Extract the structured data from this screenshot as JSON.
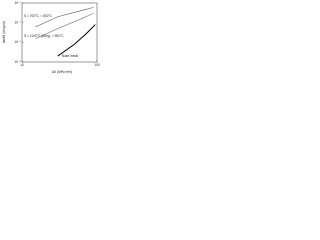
{
  "chart_data": {
    "type": "line",
    "y_label": "da/dN (m/cycle)",
    "x_label": "ΔK (MPa·m½)",
    "xlim": [
      10,
      100
    ],
    "ylim": [
      1e-09,
      1e-06
    ],
    "log_x": true,
    "log_y": true,
    "xticks": [
      10,
      100
    ],
    "yticks": [
      {
        "value": 1e-09,
        "label": "10⁻⁹"
      },
      {
        "value": 1e-08,
        "label": "10⁻⁸"
      },
      {
        "value": 1e-07,
        "label": "10⁻⁷"
      },
      {
        "value": 1e-06,
        "label": "10⁻⁶"
      }
    ],
    "series": [
      {
        "name": "S = 700°C, = 800°C",
        "color": "#555555",
        "x": [
          15,
          30,
          60,
          90
        ],
        "values": [
          6e-08,
          2e-07,
          4e-07,
          6e-07
        ]
      },
      {
        "name": "S = 1100°C (Alloy), = 900°C",
        "color": "#777777",
        "x": [
          15,
          30,
          60,
          90
        ],
        "values": [
          1.5e-08,
          5e-08,
          1.5e-07,
          3e-07
        ]
      },
      {
        "name": "Base metal",
        "color": "#000000",
        "x": [
          30,
          50,
          70,
          95
        ],
        "values": [
          2e-09,
          8e-09,
          2.5e-08,
          8e-08
        ]
      }
    ]
  }
}
